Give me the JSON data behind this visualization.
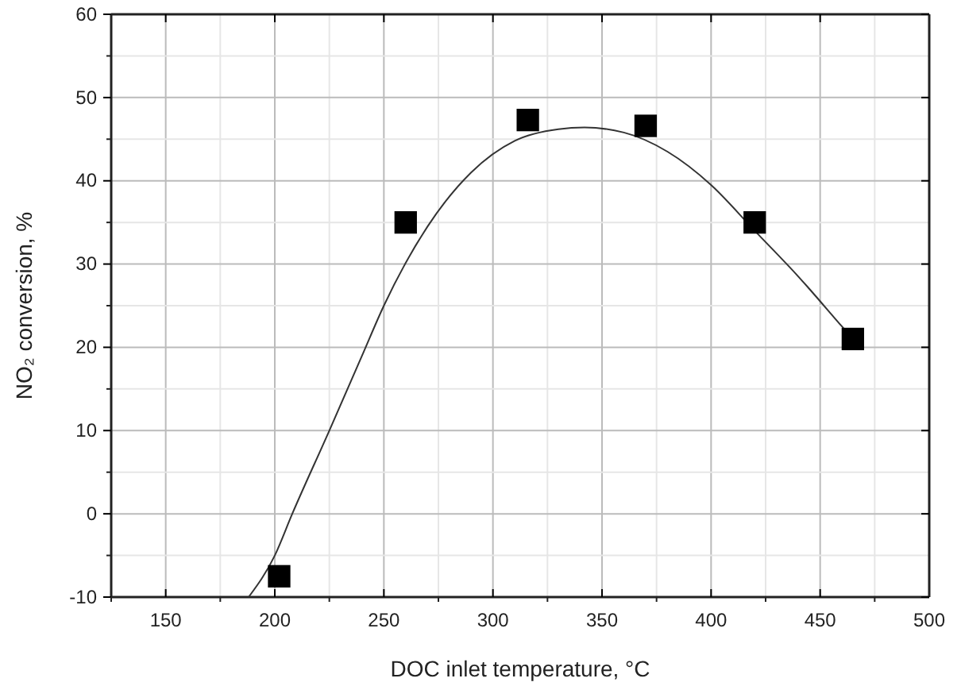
{
  "chart_data": {
    "type": "scatter",
    "xlabel": "DOC inlet temperature, °C",
    "ylabel": "NO₂ conversion, %",
    "xlim": [
      125,
      500
    ],
    "xticks": [
      150,
      200,
      250,
      300,
      350,
      400,
      450,
      500
    ],
    "ylim": [
      -10,
      60
    ],
    "yticks": [
      -10,
      0,
      10,
      20,
      30,
      40,
      50,
      60
    ],
    "grid": true,
    "series": [
      {
        "marker": "square",
        "color": "#000000",
        "x": [
          202,
          260,
          316,
          370,
          420,
          465
        ],
        "values": [
          -7.5,
          35,
          47.3,
          46.6,
          35,
          21
        ]
      },
      {
        "type": "line",
        "marker": "none",
        "line_style": "solid",
        "color": "#333333",
        "x": [
          188,
          200,
          208,
          225,
          240,
          250,
          270,
          290,
          310,
          330,
          342,
          360,
          380,
          400,
          420,
          440,
          460,
          465
        ],
        "values": [
          -10,
          -5,
          0,
          10,
          19,
          25,
          34.5,
          41,
          44.8,
          46.2,
          46.4,
          45.8,
          43.5,
          39.5,
          34,
          28.5,
          22.5,
          21
        ]
      }
    ]
  }
}
